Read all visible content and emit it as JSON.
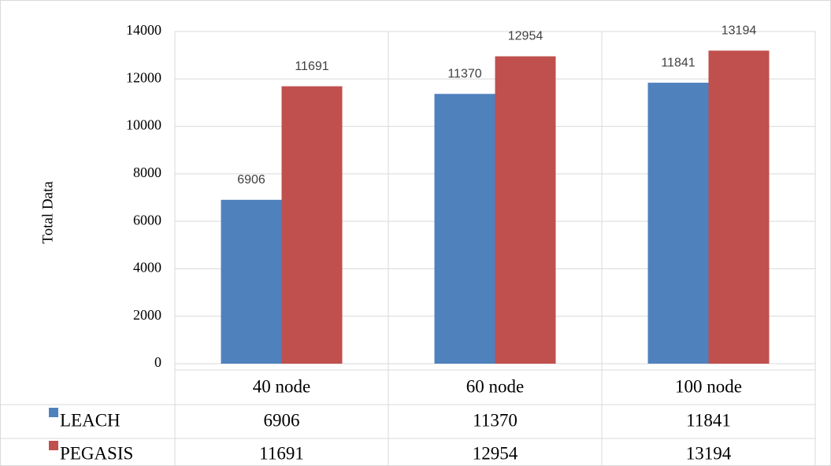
{
  "chart_data": {
    "type": "bar",
    "y_label": "Total Data",
    "categories": [
      "40 node",
      "60 node",
      "100 node"
    ],
    "series": [
      {
        "name": "LEACH",
        "color": "#4f81bd",
        "values": [
          6906,
          11370,
          11841
        ]
      },
      {
        "name": "PEGASIS",
        "color": "#c0504d",
        "values": [
          11691,
          12954,
          13194
        ]
      }
    ],
    "ylim": [
      0,
      14000
    ],
    "yticks": [
      0,
      2000,
      4000,
      6000,
      8000,
      10000,
      12000,
      14000
    ],
    "grid": true,
    "data_labels": true,
    "data_table": true
  }
}
